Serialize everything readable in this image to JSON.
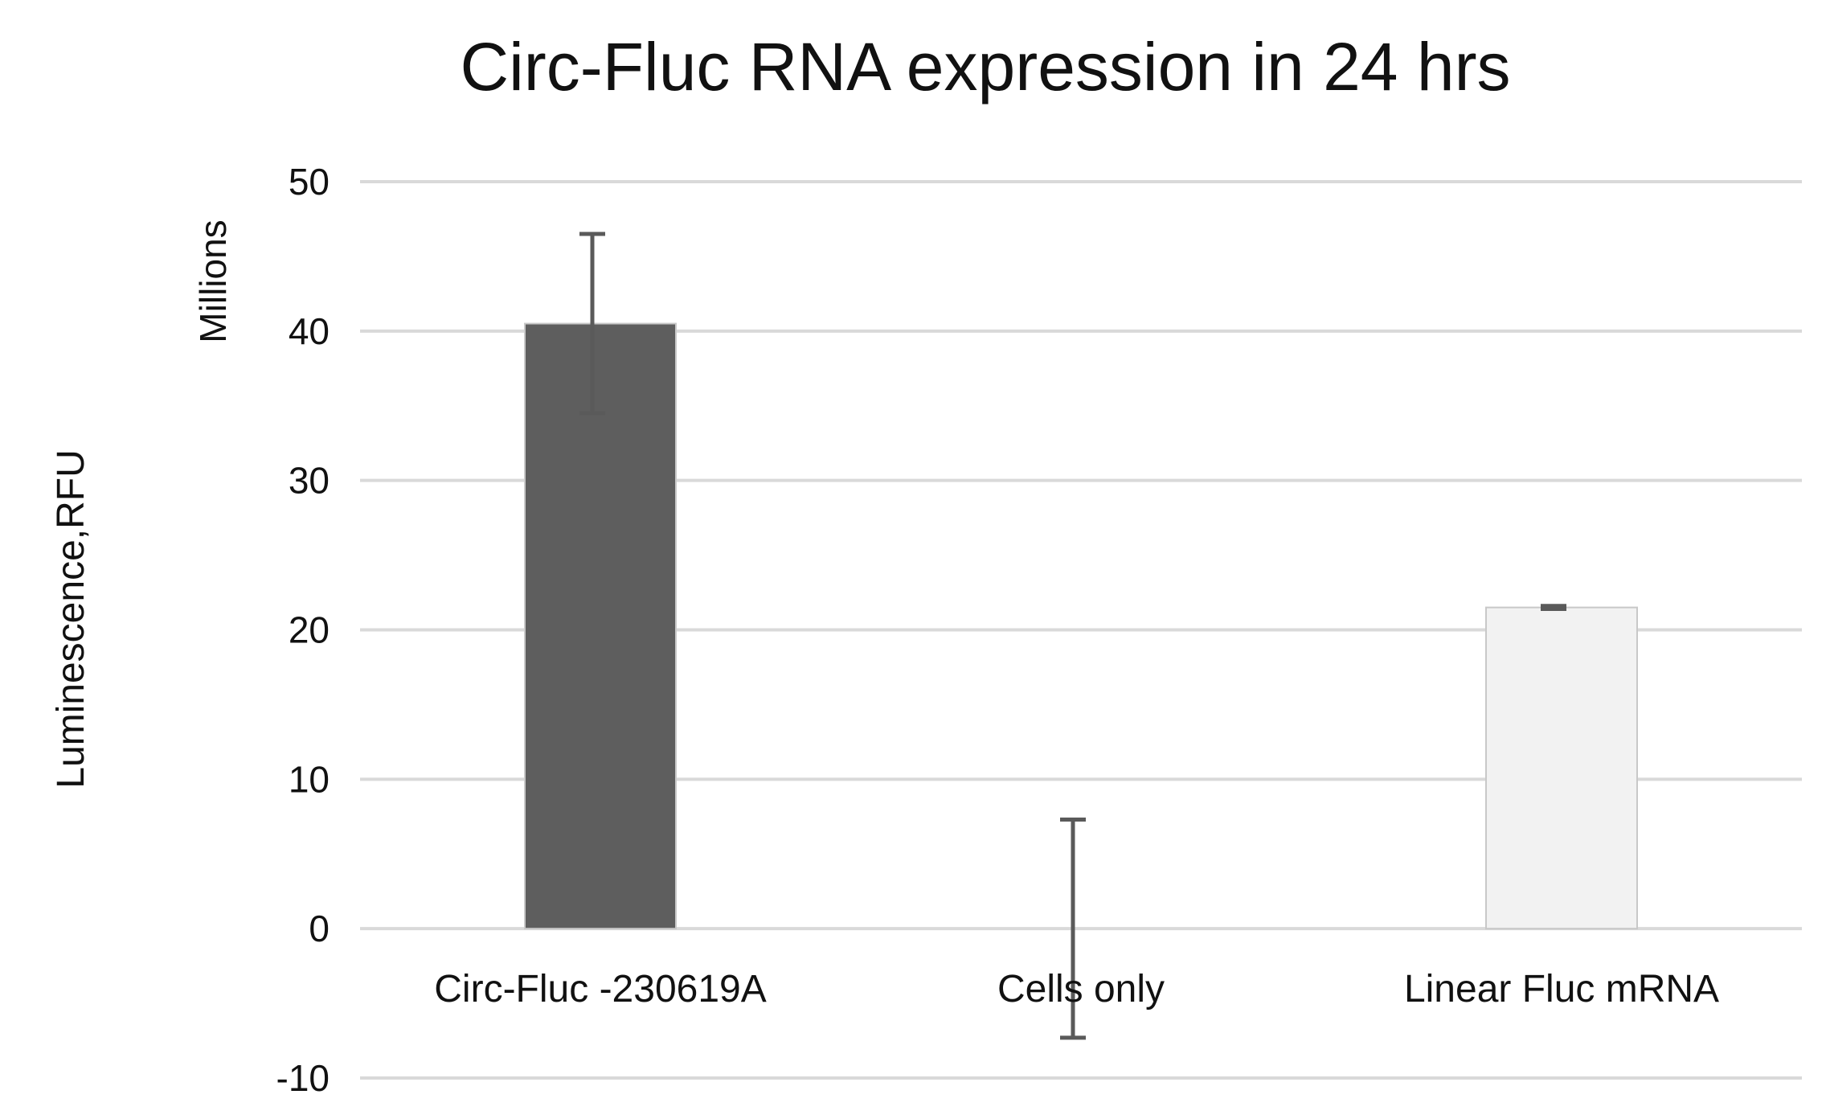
{
  "chart_data": {
    "type": "bar",
    "title": "Circ-Fluc RNA expression in 24 hrs",
    "ylabel": "Luminescence,RFU",
    "yunit": "Millions",
    "xlabel": "",
    "categories": [
      "Circ-Fluc -230619A",
      "Cells only",
      "Linear Fluc mRNA"
    ],
    "values": [
      40.5,
      0,
      21.5
    ],
    "errors": [
      6,
      7.3,
      0.1
    ],
    "bar_colors": [
      "#5e5e5e",
      "#5e5e5e",
      "#f2f2f2"
    ],
    "ylim": [
      -10,
      50
    ],
    "yticks": [
      {
        "value": 50,
        "label": "50"
      },
      {
        "value": 40,
        "label": "40"
      },
      {
        "value": 30,
        "label": "30"
      },
      {
        "value": 20,
        "label": "20"
      },
      {
        "value": 10,
        "label": "10"
      },
      {
        "value": 0,
        "label": "0"
      },
      {
        "value": -10,
        "label": "-10"
      }
    ],
    "grid": true,
    "legend": "none"
  }
}
